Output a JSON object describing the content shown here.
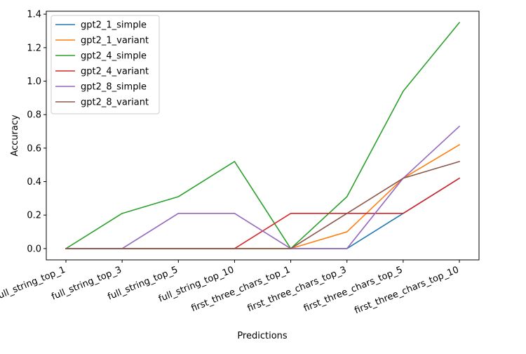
{
  "chart_data": {
    "type": "line",
    "title": "",
    "xlabel": "Predictions",
    "ylabel": "Accuracy",
    "categories": [
      "full_string_top_1",
      "full_string_top_3",
      "full_string_top_5",
      "full_string_top_10",
      "first_three_chars_top_1",
      "first_three_chars_top_3",
      "first_three_chars_top_5",
      "first_three_chars_top_10"
    ],
    "yticks": [
      0.0,
      0.2,
      0.4,
      0.6,
      0.8,
      1.0,
      1.2,
      1.4
    ],
    "ylim": [
      -0.0675,
      1.4175
    ],
    "grid": false,
    "legend_position": "top-left",
    "series": [
      {
        "name": "gpt2_1_simple",
        "color": "#1f77b4",
        "values": [
          0,
          0,
          0,
          0,
          0,
          0,
          0.21,
          0.42
        ]
      },
      {
        "name": "gpt2_1_variant",
        "color": "#ff7f0e",
        "values": [
          0,
          0,
          0,
          0,
          0,
          0.1,
          0.42,
          0.62
        ]
      },
      {
        "name": "gpt2_4_simple",
        "color": "#2ca02c",
        "values": [
          0,
          0.21,
          0.31,
          0.52,
          0,
          0.31,
          0.94,
          1.35
        ]
      },
      {
        "name": "gpt2_4_variant",
        "color": "#d62728",
        "values": [
          0,
          0,
          0,
          0,
          0.21,
          0.21,
          0.21,
          0.42
        ]
      },
      {
        "name": "gpt2_8_simple",
        "color": "#9467bd",
        "values": [
          0,
          0,
          0.21,
          0.21,
          0,
          0,
          0.42,
          0.73
        ]
      },
      {
        "name": "gpt2_8_variant",
        "color": "#8c564b",
        "values": [
          0,
          0,
          0,
          0,
          0,
          0.21,
          0.42,
          0.52
        ]
      }
    ]
  }
}
